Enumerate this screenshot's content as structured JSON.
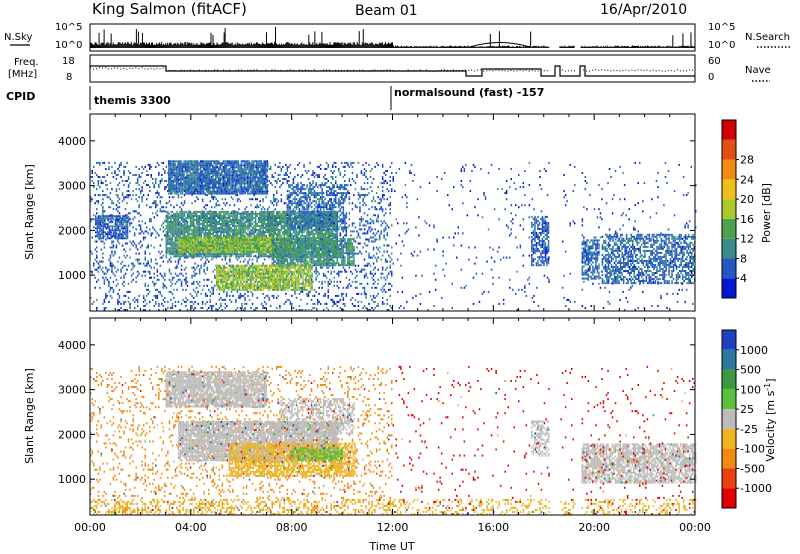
{
  "header": {
    "station": "King Salmon (fitACF)",
    "beam": "Beam 01",
    "date": "16/Apr/2010"
  },
  "status_panels": {
    "nsky": {
      "label": "N.Sky",
      "right_label": "N.Search",
      "ticks_left": [
        "10^5",
        "10^0"
      ],
      "ticks_right": [
        "10^5",
        "10^0"
      ]
    },
    "freq": {
      "label_lines": [
        "Freq.",
        "[MHz]"
      ],
      "ticks_left": [
        "18",
        "8"
      ],
      "right_label": "Nave",
      "ticks_right": [
        "60",
        "0"
      ]
    },
    "cpid": {
      "label": "CPID",
      "modes": [
        {
          "name": "themis 3300",
          "start_hour": 0
        },
        {
          "name": "normalsound (fast) -157",
          "start_hour": 12
        }
      ]
    }
  },
  "chart_data": [
    {
      "type": "heatmap",
      "name": "power",
      "ylabel": "Slant Range [km]",
      "ylim": [
        200,
        4600
      ],
      "yticks": [
        1000,
        2000,
        3000,
        4000
      ],
      "xlim": [
        0,
        24
      ],
      "colorbar": {
        "label": "Power [dB]",
        "ticks": [
          "4",
          "8",
          "12",
          "16",
          "20",
          "24",
          "28"
        ],
        "colors": [
          "#0018d0",
          "#2258c6",
          "#3a8c8c",
          "#4aa24a",
          "#a8c82c",
          "#f0c018",
          "#f08c14",
          "#e05010",
          "#d00000"
        ],
        "range": [
          0,
          30
        ]
      },
      "regions": [
        {
          "t0": 0.0,
          "t1": 12.0,
          "r0": 200,
          "r1": 3500,
          "fill": 0.18,
          "value": 5
        },
        {
          "t0": 3.1,
          "t1": 7.0,
          "r0": 2800,
          "r1": 3550,
          "fill": 0.9,
          "value": 6
        },
        {
          "t0": 0.2,
          "t1": 1.5,
          "r0": 1800,
          "r1": 2300,
          "fill": 0.8,
          "value": 5
        },
        {
          "t0": 3.0,
          "t1": 9.8,
          "r0": 1400,
          "r1": 2400,
          "fill": 0.85,
          "value": 9
        },
        {
          "t0": 3.5,
          "t1": 8.0,
          "r0": 1500,
          "r1": 1850,
          "fill": 0.9,
          "value": 14
        },
        {
          "t0": 7.8,
          "t1": 10.2,
          "r0": 2000,
          "r1": 3000,
          "fill": 0.5,
          "value": 6
        },
        {
          "t0": 7.2,
          "t1": 10.5,
          "r0": 1200,
          "r1": 1800,
          "fill": 0.8,
          "value": 9
        },
        {
          "t0": 5.0,
          "t1": 8.8,
          "r0": 650,
          "r1": 1200,
          "fill": 0.85,
          "value": 14
        },
        {
          "t0": 17.5,
          "t1": 18.2,
          "r0": 1200,
          "r1": 2300,
          "fill": 0.6,
          "value": 5
        },
        {
          "t0": 19.5,
          "t1": 20.2,
          "r0": 900,
          "r1": 1800,
          "fill": 0.7,
          "value": 6
        },
        {
          "t0": 20.3,
          "t1": 24.0,
          "r0": 800,
          "r1": 1900,
          "fill": 0.6,
          "value": 6
        },
        {
          "t0": 12.0,
          "t1": 24.0,
          "r0": 200,
          "r1": 3500,
          "fill": 0.03,
          "value": 4
        }
      ]
    },
    {
      "type": "heatmap",
      "name": "velocity",
      "ylabel": "Slant Range [km]",
      "ylim": [
        200,
        4600
      ],
      "yticks": [
        1000,
        2000,
        3000,
        4000
      ],
      "xlim": [
        0,
        24
      ],
      "xlabel": "Time UT",
      "xticks": [
        "00:00",
        "04:00",
        "08:00",
        "12:00",
        "16:00",
        "20:00",
        "00:00"
      ],
      "colorbar": {
        "label": "Velocity [m s^-1]",
        "ticks": [
          "1000",
          "500",
          "100",
          "25",
          "-25",
          "-100",
          "-500",
          "-1000"
        ],
        "colors": [
          "#2040c0",
          "#2c78a0",
          "#3c9a40",
          "#58c23a",
          "#bcbcbc",
          "#f0b420",
          "#f08a10",
          "#e84010",
          "#e00000"
        ]
      },
      "regions": [
        {
          "t0": 0.0,
          "t1": 12.0,
          "r0": 200,
          "r1": 3500,
          "fill": 0.12,
          "color": "#f08a10"
        },
        {
          "t0": 3.0,
          "t1": 7.0,
          "r0": 2600,
          "r1": 3400,
          "fill": 0.85,
          "color": "#bcbcbc"
        },
        {
          "t0": 3.5,
          "t1": 9.8,
          "r0": 1400,
          "r1": 2300,
          "fill": 0.9,
          "color": "#bcbcbc"
        },
        {
          "t0": 7.5,
          "t1": 10.5,
          "r0": 2000,
          "r1": 2800,
          "fill": 0.5,
          "color": "#bcbcbc"
        },
        {
          "t0": 5.5,
          "t1": 10.5,
          "r0": 1050,
          "r1": 1800,
          "fill": 0.7,
          "color": "#f0b420"
        },
        {
          "t0": 8.0,
          "t1": 10.0,
          "r0": 1400,
          "r1": 1700,
          "fill": 0.6,
          "color": "#58c23a"
        },
        {
          "t0": 19.5,
          "t1": 24.0,
          "r0": 900,
          "r1": 1800,
          "fill": 0.75,
          "color": "#bcbcbc"
        },
        {
          "t0": 17.5,
          "t1": 18.2,
          "r0": 1500,
          "r1": 2300,
          "fill": 0.5,
          "color": "#bcbcbc"
        },
        {
          "t0": 0.0,
          "t1": 24.0,
          "r0": 200,
          "r1": 550,
          "fill": 0.25,
          "color": "#f0b420"
        },
        {
          "t0": 12.0,
          "t1": 24.0,
          "r0": 200,
          "r1": 3500,
          "fill": 0.025,
          "color": "#e00000"
        }
      ]
    }
  ]
}
